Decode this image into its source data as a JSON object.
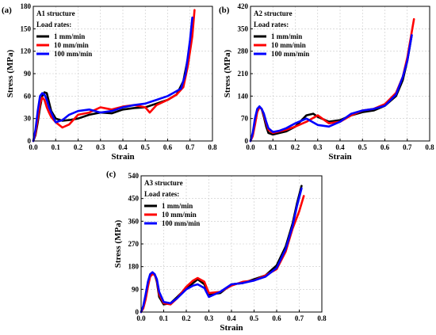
{
  "chart_data": [
    {
      "type": "line",
      "panel_label": "(a)",
      "title": "A1 structure",
      "legend_title": "Load rates:",
      "legend_placement": "top-left",
      "grid": true,
      "xlabel": "Strain",
      "ylabel": "Stress (MPa)",
      "xlim": [
        0,
        0.8
      ],
      "ylim": [
        0,
        180
      ],
      "xticks": [
        "0.0",
        "0.1",
        "0.2",
        "0.3",
        "0.4",
        "0.5",
        "0.6",
        "0.7",
        "0.8"
      ],
      "yticks": [
        "0",
        "30",
        "60",
        "90",
        "120",
        "150",
        "180"
      ],
      "series": [
        {
          "name": "1 mm/min",
          "color": "#000000",
          "x": [
            0.0,
            0.01,
            0.02,
            0.03,
            0.04,
            0.05,
            0.06,
            0.07,
            0.08,
            0.1,
            0.13,
            0.16,
            0.2,
            0.25,
            0.3,
            0.35,
            0.4,
            0.45,
            0.5,
            0.55,
            0.6,
            0.64,
            0.67,
            0.69,
            0.7,
            0.71
          ],
          "y": [
            0,
            8,
            25,
            45,
            60,
            65,
            64,
            52,
            40,
            30,
            27,
            28,
            30,
            35,
            38,
            37,
            42,
            44,
            45,
            50,
            55,
            62,
            80,
            110,
            130,
            160
          ]
        },
        {
          "name": "10 mm/min",
          "color": "#ff0000",
          "x": [
            0.0,
            0.01,
            0.02,
            0.03,
            0.04,
            0.05,
            0.06,
            0.07,
            0.08,
            0.1,
            0.13,
            0.16,
            0.2,
            0.25,
            0.3,
            0.35,
            0.4,
            0.45,
            0.5,
            0.52,
            0.55,
            0.6,
            0.64,
            0.67,
            0.69,
            0.71,
            0.72
          ],
          "y": [
            0,
            10,
            30,
            50,
            58,
            55,
            45,
            38,
            32,
            25,
            18,
            22,
            35,
            38,
            45,
            42,
            46,
            48,
            45,
            38,
            48,
            55,
            62,
            72,
            100,
            140,
            175
          ]
        },
        {
          "name": "100 mm/min",
          "color": "#0000ff",
          "x": [
            0.0,
            0.01,
            0.02,
            0.03,
            0.04,
            0.05,
            0.06,
            0.07,
            0.08,
            0.1,
            0.13,
            0.16,
            0.2,
            0.25,
            0.3,
            0.35,
            0.4,
            0.45,
            0.5,
            0.55,
            0.6,
            0.63,
            0.66,
            0.68,
            0.7,
            0.71
          ],
          "y": [
            0,
            15,
            40,
            60,
            64,
            62,
            55,
            45,
            38,
            25,
            28,
            35,
            40,
            42,
            38,
            40,
            45,
            48,
            50,
            55,
            60,
            65,
            70,
            90,
            135,
            165
          ]
        }
      ]
    },
    {
      "type": "line",
      "panel_label": "(b)",
      "title": "A2 structure",
      "legend_title": "Load rates:",
      "legend_placement": "top-left",
      "grid": true,
      "xlabel": "Strain",
      "ylabel": "Stress (MPa)",
      "xlim": [
        0,
        0.8
      ],
      "ylim": [
        0,
        420
      ],
      "xticks": [
        "0.0",
        "0.1",
        "0.2",
        "0.3",
        "0.4",
        "0.5",
        "0.6",
        "0.7",
        "0.8"
      ],
      "yticks": [
        "0",
        "70",
        "140",
        "210",
        "280",
        "350",
        "420"
      ],
      "series": [
        {
          "name": "1 mm/min",
          "color": "#000000",
          "x": [
            0.0,
            0.01,
            0.02,
            0.03,
            0.04,
            0.05,
            0.06,
            0.07,
            0.08,
            0.1,
            0.13,
            0.16,
            0.2,
            0.25,
            0.28,
            0.3,
            0.35,
            0.4,
            0.45,
            0.5,
            0.55,
            0.6,
            0.65,
            0.68,
            0.7,
            0.72
          ],
          "y": [
            0,
            20,
            60,
            95,
            105,
            100,
            75,
            45,
            25,
            20,
            25,
            30,
            45,
            80,
            85,
            75,
            60,
            65,
            80,
            90,
            95,
            110,
            140,
            190,
            250,
            330
          ]
        },
        {
          "name": "10 mm/min",
          "color": "#ff0000",
          "x": [
            0.0,
            0.01,
            0.02,
            0.03,
            0.04,
            0.05,
            0.06,
            0.07,
            0.08,
            0.1,
            0.13,
            0.16,
            0.2,
            0.25,
            0.3,
            0.35,
            0.4,
            0.45,
            0.5,
            0.55,
            0.6,
            0.65,
            0.68,
            0.7,
            0.72,
            0.73
          ],
          "y": [
            0,
            15,
            50,
            90,
            105,
            100,
            80,
            55,
            35,
            25,
            30,
            35,
            45,
            60,
            80,
            55,
            60,
            80,
            95,
            100,
            115,
            150,
            200,
            260,
            340,
            380
          ]
        },
        {
          "name": "100 mm/min",
          "color": "#0000ff",
          "x": [
            0.0,
            0.01,
            0.02,
            0.03,
            0.04,
            0.05,
            0.06,
            0.07,
            0.08,
            0.1,
            0.13,
            0.16,
            0.2,
            0.25,
            0.3,
            0.35,
            0.4,
            0.45,
            0.5,
            0.55,
            0.6,
            0.65,
            0.68,
            0.7,
            0.72
          ],
          "y": [
            0,
            25,
            70,
            100,
            108,
            100,
            85,
            60,
            40,
            28,
            32,
            40,
            55,
            70,
            50,
            45,
            60,
            85,
            95,
            100,
            110,
            145,
            200,
            250,
            330
          ]
        }
      ]
    },
    {
      "type": "line",
      "panel_label": "(c)",
      "title": "A3 structure",
      "legend_title": "Load rates:",
      "legend_placement": "top-left",
      "grid": true,
      "xlabel": "Strain",
      "ylabel": "Stress (MPa)",
      "xlim": [
        0,
        0.8
      ],
      "ylim": [
        0,
        540
      ],
      "xticks": [
        "0.0",
        "0.1",
        "0.2",
        "0.3",
        "0.4",
        "0.5",
        "0.6",
        "0.7",
        "0.8"
      ],
      "yticks": [
        "0",
        "90",
        "180",
        "270",
        "360",
        "450",
        "540"
      ],
      "series": [
        {
          "name": "1 mm/min",
          "color": "#000000",
          "x": [
            0.0,
            0.01,
            0.02,
            0.03,
            0.04,
            0.05,
            0.06,
            0.07,
            0.08,
            0.1,
            0.13,
            0.16,
            0.2,
            0.23,
            0.25,
            0.28,
            0.3,
            0.35,
            0.4,
            0.45,
            0.5,
            0.55,
            0.6,
            0.64,
            0.67,
            0.69,
            0.71
          ],
          "y": [
            0,
            20,
            60,
            110,
            145,
            155,
            150,
            120,
            60,
            30,
            35,
            60,
            95,
            115,
            130,
            110,
            70,
            75,
            110,
            115,
            130,
            145,
            185,
            260,
            350,
            430,
            500
          ]
        },
        {
          "name": "10 mm/min",
          "color": "#ff0000",
          "x": [
            0.0,
            0.01,
            0.02,
            0.03,
            0.04,
            0.05,
            0.06,
            0.07,
            0.08,
            0.1,
            0.13,
            0.16,
            0.2,
            0.23,
            0.25,
            0.28,
            0.3,
            0.35,
            0.4,
            0.45,
            0.5,
            0.55,
            0.6,
            0.64,
            0.67,
            0.7,
            0.72
          ],
          "y": [
            0,
            15,
            50,
            100,
            140,
            150,
            148,
            125,
            70,
            35,
            30,
            55,
            100,
            125,
            135,
            120,
            75,
            80,
            105,
            120,
            125,
            145,
            170,
            240,
            330,
            400,
            460
          ]
        },
        {
          "name": "100 mm/min",
          "color": "#0000ff",
          "x": [
            0.0,
            0.01,
            0.02,
            0.03,
            0.04,
            0.05,
            0.06,
            0.07,
            0.08,
            0.1,
            0.13,
            0.16,
            0.2,
            0.23,
            0.25,
            0.28,
            0.3,
            0.35,
            0.4,
            0.45,
            0.5,
            0.55,
            0.6,
            0.64,
            0.67,
            0.69,
            0.71
          ],
          "y": [
            0,
            25,
            70,
            120,
            150,
            158,
            150,
            130,
            80,
            40,
            35,
            55,
            90,
            105,
            110,
            95,
            60,
            80,
            110,
            115,
            125,
            140,
            175,
            250,
            340,
            420,
            490
          ]
        }
      ]
    }
  ]
}
